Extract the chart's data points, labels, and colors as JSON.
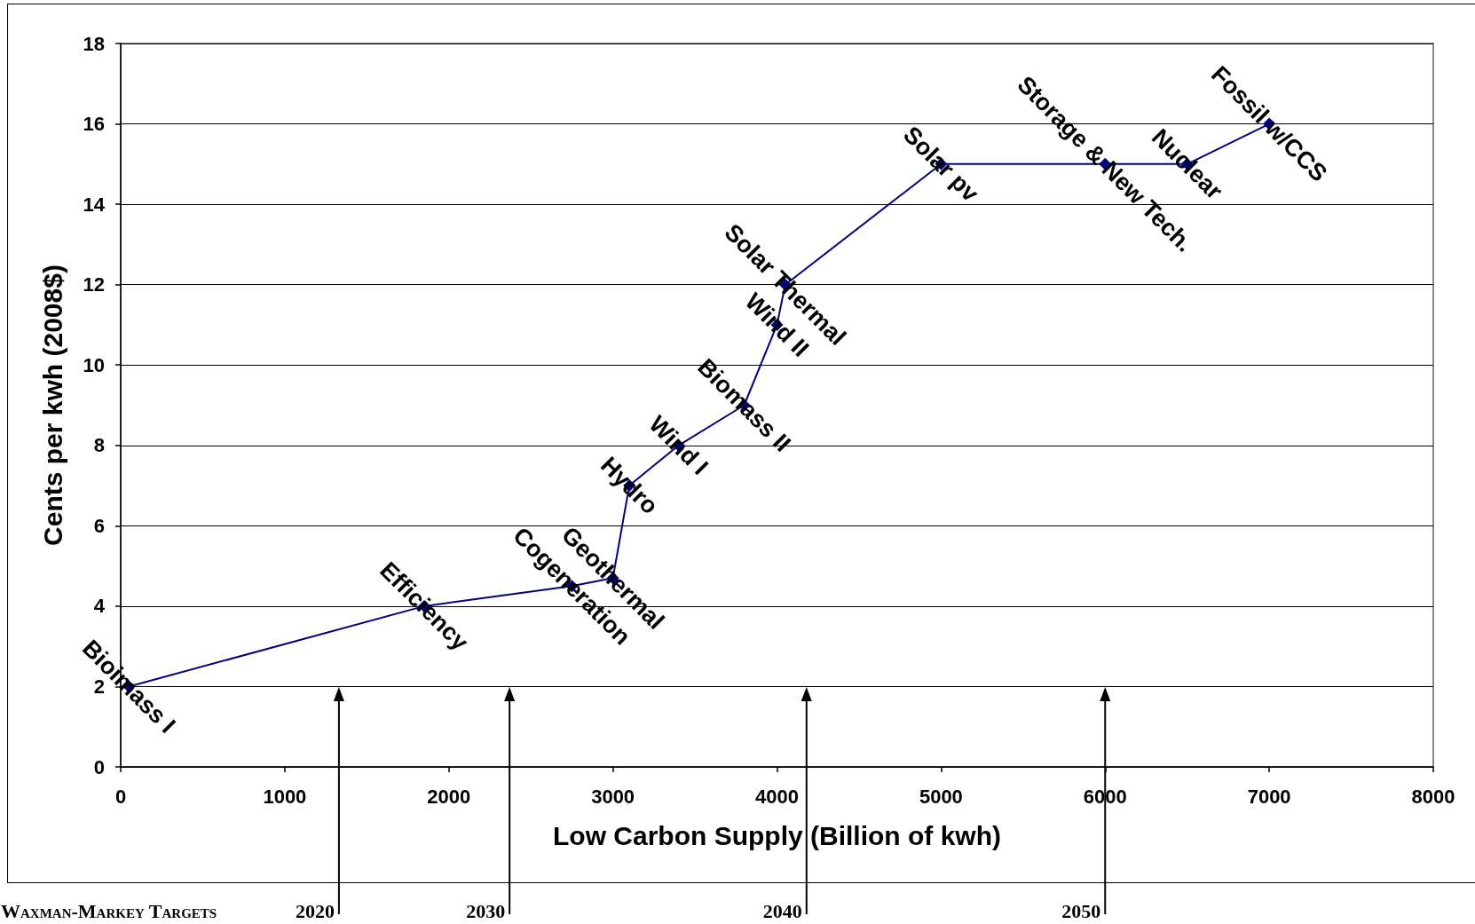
{
  "chart_data": {
    "type": "line",
    "xlabel": "Low Carbon Supply (Billion of kwh)",
    "ylabel": "Cents per kwh (2008$)",
    "x": [
      50,
      1850,
      2750,
      3000,
      3100,
      3400,
      3800,
      4000,
      4050,
      5000,
      6000,
      6500,
      7000
    ],
    "values": [
      2,
      4,
      4.5,
      4.7,
      7,
      8,
      9,
      11,
      12,
      15,
      15,
      15,
      16
    ],
    "value_labels": [
      "Bioimass I",
      "Efficiency",
      "Cogeneration",
      "Geothermal",
      "Hydro",
      "Wind I",
      "Biomass II",
      "Wind II",
      "Solar Thermal",
      "Solar pv",
      "Storage & New Tech.",
      "Nuclear",
      "Fossil w/CCS"
    ],
    "color": "#000080",
    "marker": "diamond",
    "line_style": "solid",
    "xlim": [
      0,
      8000
    ],
    "xticks": [
      0,
      1000,
      2000,
      3000,
      4000,
      5000,
      6000,
      7000,
      8000
    ],
    "ylim": [
      0,
      18
    ],
    "yticks": [
      0,
      2,
      4,
      6,
      8,
      10,
      12,
      14,
      16,
      18
    ],
    "grid": "y",
    "ref_lines": [
      {
        "axis": "x",
        "value": 1330
      },
      {
        "axis": "x",
        "value": 2370
      },
      {
        "axis": "x",
        "value": 4180
      },
      {
        "axis": "x",
        "value": 6000
      }
    ],
    "annotations": [
      "Waxman-Markey Targets",
      "2020",
      "2030",
      "2040",
      "2050"
    ]
  }
}
